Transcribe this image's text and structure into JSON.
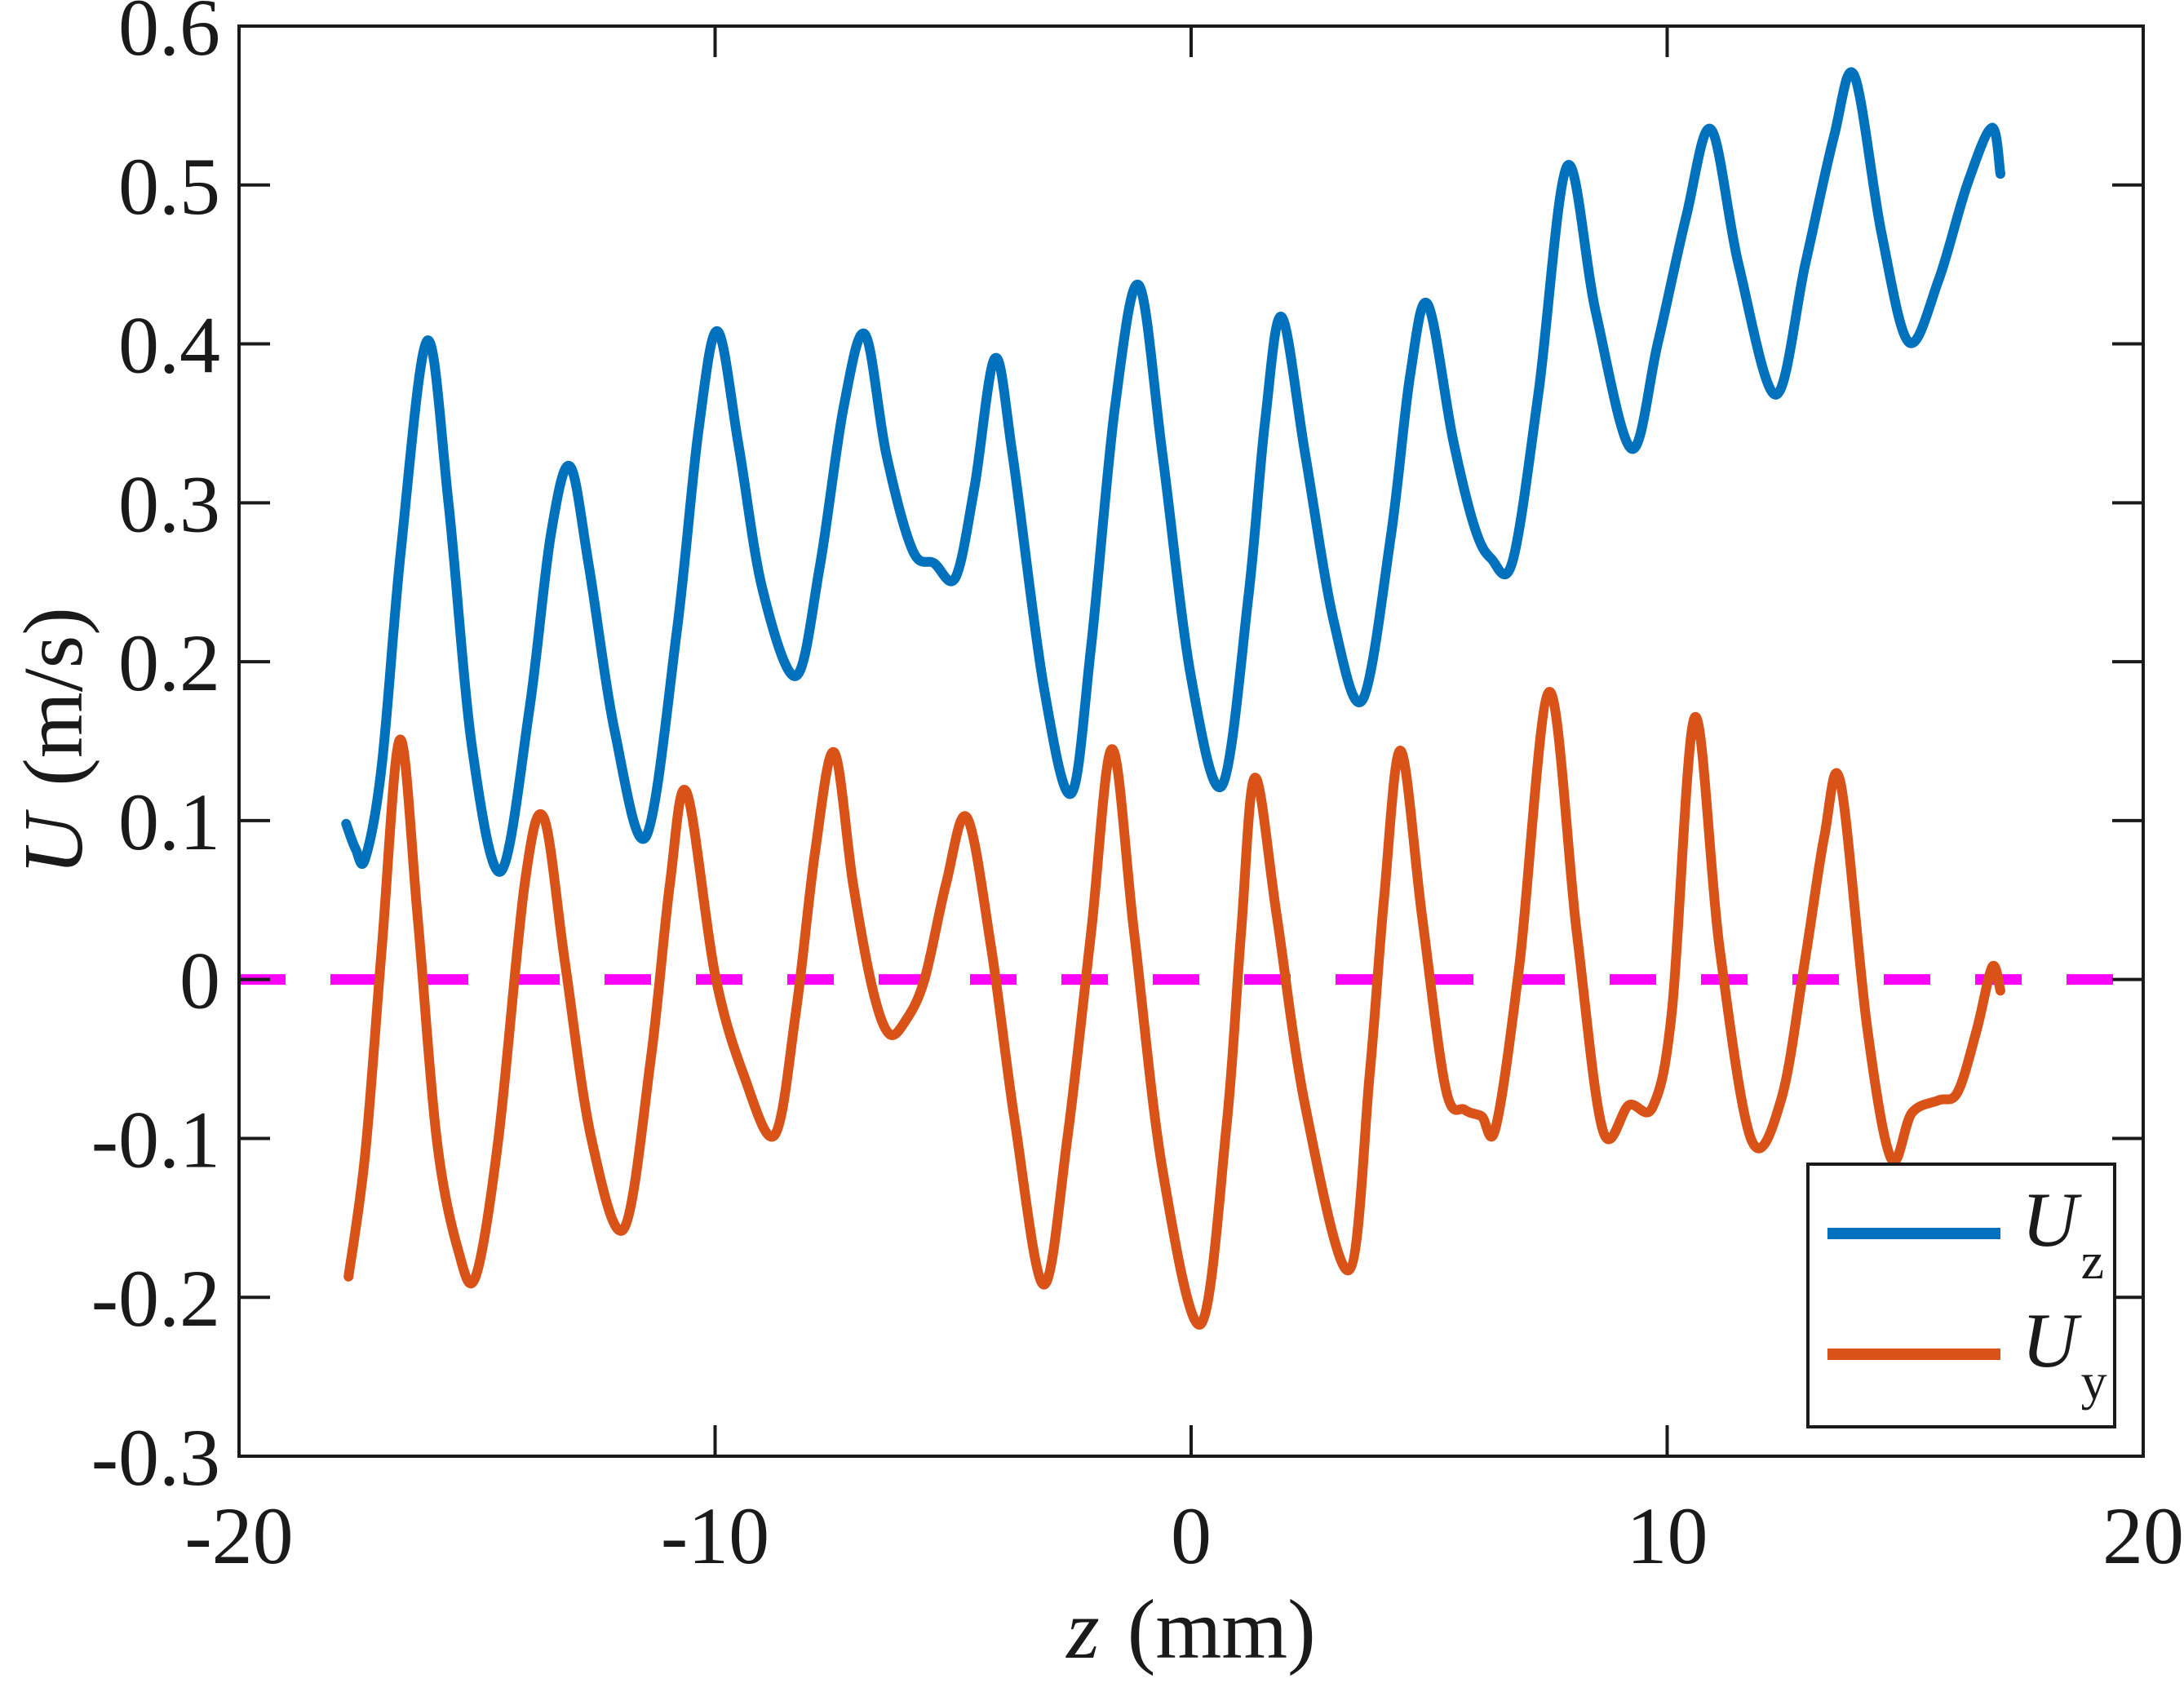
{
  "chart_data": {
    "type": "line",
    "title": "",
    "xlabel_var": "z",
    "xlabel_unit": "(mm)",
    "ylabel_var": "U",
    "ylabel_unit": "(m/s)",
    "xlim": [
      -20,
      20
    ],
    "ylim": [
      -0.3,
      0.6
    ],
    "grid": false,
    "background": "#ffffff",
    "axis_color": "#1a1a1a",
    "x_ticks": {
      "values": [
        -20,
        -10,
        0,
        10,
        20
      ],
      "labels": [
        "-20",
        "-10",
        "0",
        "10",
        "20"
      ]
    },
    "y_ticks": {
      "values": [
        0.6,
        0.5,
        0.4,
        0.3,
        0.2,
        0.1,
        0,
        -0.1,
        -0.2,
        -0.3
      ],
      "labels": [
        "0.6",
        "0.5",
        "0.4",
        "0.3",
        "0.2",
        "0.1",
        "0",
        "-0.1",
        "-0.2",
        "-0.3"
      ]
    },
    "reference_line": {
      "y": 0,
      "color": "#FF00FF",
      "style": "dashed"
    },
    "legend": {
      "position": "bottom-right",
      "entries": [
        {
          "main": "U",
          "sub": "z",
          "color": "#0072BD"
        },
        {
          "main": "U",
          "sub": "y",
          "color": "#D95319"
        }
      ]
    },
    "series": [
      {
        "name": "U_z",
        "color": "#0072BD",
        "points": [
          [
            -17.75,
            0.098
          ],
          [
            -17.55,
            0.082
          ],
          [
            -17.35,
            0.076
          ],
          [
            -17.0,
            0.135
          ],
          [
            -16.6,
            0.27
          ],
          [
            -16.05,
            0.402
          ],
          [
            -15.6,
            0.3
          ],
          [
            -15.1,
            0.145
          ],
          [
            -14.5,
            0.068
          ],
          [
            -13.9,
            0.17
          ],
          [
            -13.45,
            0.28
          ],
          [
            -13.05,
            0.323
          ],
          [
            -12.65,
            0.26
          ],
          [
            -12.1,
            0.155
          ],
          [
            -11.45,
            0.09
          ],
          [
            -10.8,
            0.22
          ],
          [
            -10.35,
            0.345
          ],
          [
            -9.95,
            0.408
          ],
          [
            -9.5,
            0.335
          ],
          [
            -9.0,
            0.245
          ],
          [
            -8.3,
            0.191
          ],
          [
            -7.8,
            0.26
          ],
          [
            -7.3,
            0.36
          ],
          [
            -6.85,
            0.406
          ],
          [
            -6.4,
            0.33
          ],
          [
            -5.85,
            0.27
          ],
          [
            -5.4,
            0.262
          ],
          [
            -4.95,
            0.253
          ],
          [
            -4.55,
            0.31
          ],
          [
            -4.12,
            0.391
          ],
          [
            -3.75,
            0.33
          ],
          [
            -3.1,
            0.185
          ],
          [
            -2.52,
            0.117
          ],
          [
            -2.1,
            0.21
          ],
          [
            -1.6,
            0.36
          ],
          [
            -1.1,
            0.437
          ],
          [
            -0.6,
            0.33
          ],
          [
            0.0,
            0.19
          ],
          [
            0.65,
            0.122
          ],
          [
            1.2,
            0.24
          ],
          [
            1.55,
            0.35
          ],
          [
            1.9,
            0.417
          ],
          [
            2.4,
            0.33
          ],
          [
            3.0,
            0.225
          ],
          [
            3.6,
            0.176
          ],
          [
            4.2,
            0.28
          ],
          [
            4.6,
            0.38
          ],
          [
            4.97,
            0.425
          ],
          [
            5.5,
            0.34
          ],
          [
            5.95,
            0.285
          ],
          [
            6.3,
            0.265
          ],
          [
            6.75,
            0.263
          ],
          [
            7.3,
            0.37
          ],
          [
            7.9,
            0.512
          ],
          [
            8.5,
            0.42
          ],
          [
            9.25,
            0.334
          ],
          [
            9.8,
            0.4
          ],
          [
            10.4,
            0.48
          ],
          [
            10.92,
            0.535
          ],
          [
            11.5,
            0.45
          ],
          [
            12.28,
            0.368
          ],
          [
            12.9,
            0.45
          ],
          [
            13.5,
            0.53
          ],
          [
            13.93,
            0.569
          ],
          [
            14.5,
            0.47
          ],
          [
            15.08,
            0.401
          ],
          [
            15.7,
            0.44
          ],
          [
            16.3,
            0.5
          ],
          [
            16.82,
            0.536
          ],
          [
            17.0,
            0.507
          ]
        ]
      },
      {
        "name": "U_y",
        "color": "#D95319",
        "points": [
          [
            -17.7,
            -0.187
          ],
          [
            -17.35,
            -0.11
          ],
          [
            -17.0,
            0.02
          ],
          [
            -16.62,
            0.151
          ],
          [
            -16.25,
            0.04
          ],
          [
            -15.85,
            -0.1
          ],
          [
            -15.4,
            -0.17
          ],
          [
            -15.03,
            -0.187
          ],
          [
            -14.55,
            -0.1
          ],
          [
            -14.0,
            0.06
          ],
          [
            -13.6,
            0.102
          ],
          [
            -13.15,
            0.01
          ],
          [
            -12.6,
            -0.1
          ],
          [
            -11.92,
            -0.157
          ],
          [
            -11.35,
            -0.05
          ],
          [
            -10.95,
            0.06
          ],
          [
            -10.6,
            0.118
          ],
          [
            -10.0,
            0.003
          ],
          [
            -9.4,
            -0.06
          ],
          [
            -8.75,
            -0.098
          ],
          [
            -8.3,
            -0.02
          ],
          [
            -7.9,
            0.08
          ],
          [
            -7.5,
            0.143
          ],
          [
            -7.1,
            0.06
          ],
          [
            -6.7,
            -0.005
          ],
          [
            -6.35,
            -0.034
          ],
          [
            -6.0,
            -0.026
          ],
          [
            -5.6,
            0.0
          ],
          [
            -5.15,
            0.06
          ],
          [
            -4.71,
            0.102
          ],
          [
            -4.2,
            0.02
          ],
          [
            -3.7,
            -0.09
          ],
          [
            -3.1,
            -0.192
          ],
          [
            -2.6,
            -0.1
          ],
          [
            -2.1,
            0.03
          ],
          [
            -1.66,
            0.145
          ],
          [
            -1.2,
            0.03
          ],
          [
            -0.6,
            -0.12
          ],
          [
            0.2,
            -0.217
          ],
          [
            0.75,
            -0.09
          ],
          [
            1.05,
            0.03
          ],
          [
            1.34,
            0.127
          ],
          [
            1.8,
            0.04
          ],
          [
            2.4,
            -0.08
          ],
          [
            3.31,
            -0.183
          ],
          [
            3.75,
            -0.06
          ],
          [
            4.05,
            0.05
          ],
          [
            4.4,
            0.144
          ],
          [
            4.85,
            0.04
          ],
          [
            5.35,
            -0.069
          ],
          [
            5.75,
            -0.082
          ],
          [
            6.1,
            -0.086
          ],
          [
            6.4,
            -0.093
          ],
          [
            6.9,
            0.01
          ],
          [
            7.52,
            0.181
          ],
          [
            8.1,
            0.03
          ],
          [
            8.65,
            -0.095
          ],
          [
            9.2,
            -0.079
          ],
          [
            9.7,
            -0.08
          ],
          [
            10.1,
            -0.02
          ],
          [
            10.58,
            0.165
          ],
          [
            11.1,
            0.02
          ],
          [
            11.77,
            -0.101
          ],
          [
            12.4,
            -0.075
          ],
          [
            12.9,
            0.013
          ],
          [
            13.3,
            0.09
          ],
          [
            13.64,
            0.124
          ],
          [
            14.2,
            -0.03
          ],
          [
            14.71,
            -0.113
          ],
          [
            15.14,
            -0.084
          ],
          [
            15.7,
            -0.076
          ],
          [
            16.1,
            -0.071
          ],
          [
            16.5,
            -0.032
          ],
          [
            16.83,
            0.008
          ],
          [
            17.0,
            -0.007
          ]
        ]
      }
    ]
  }
}
